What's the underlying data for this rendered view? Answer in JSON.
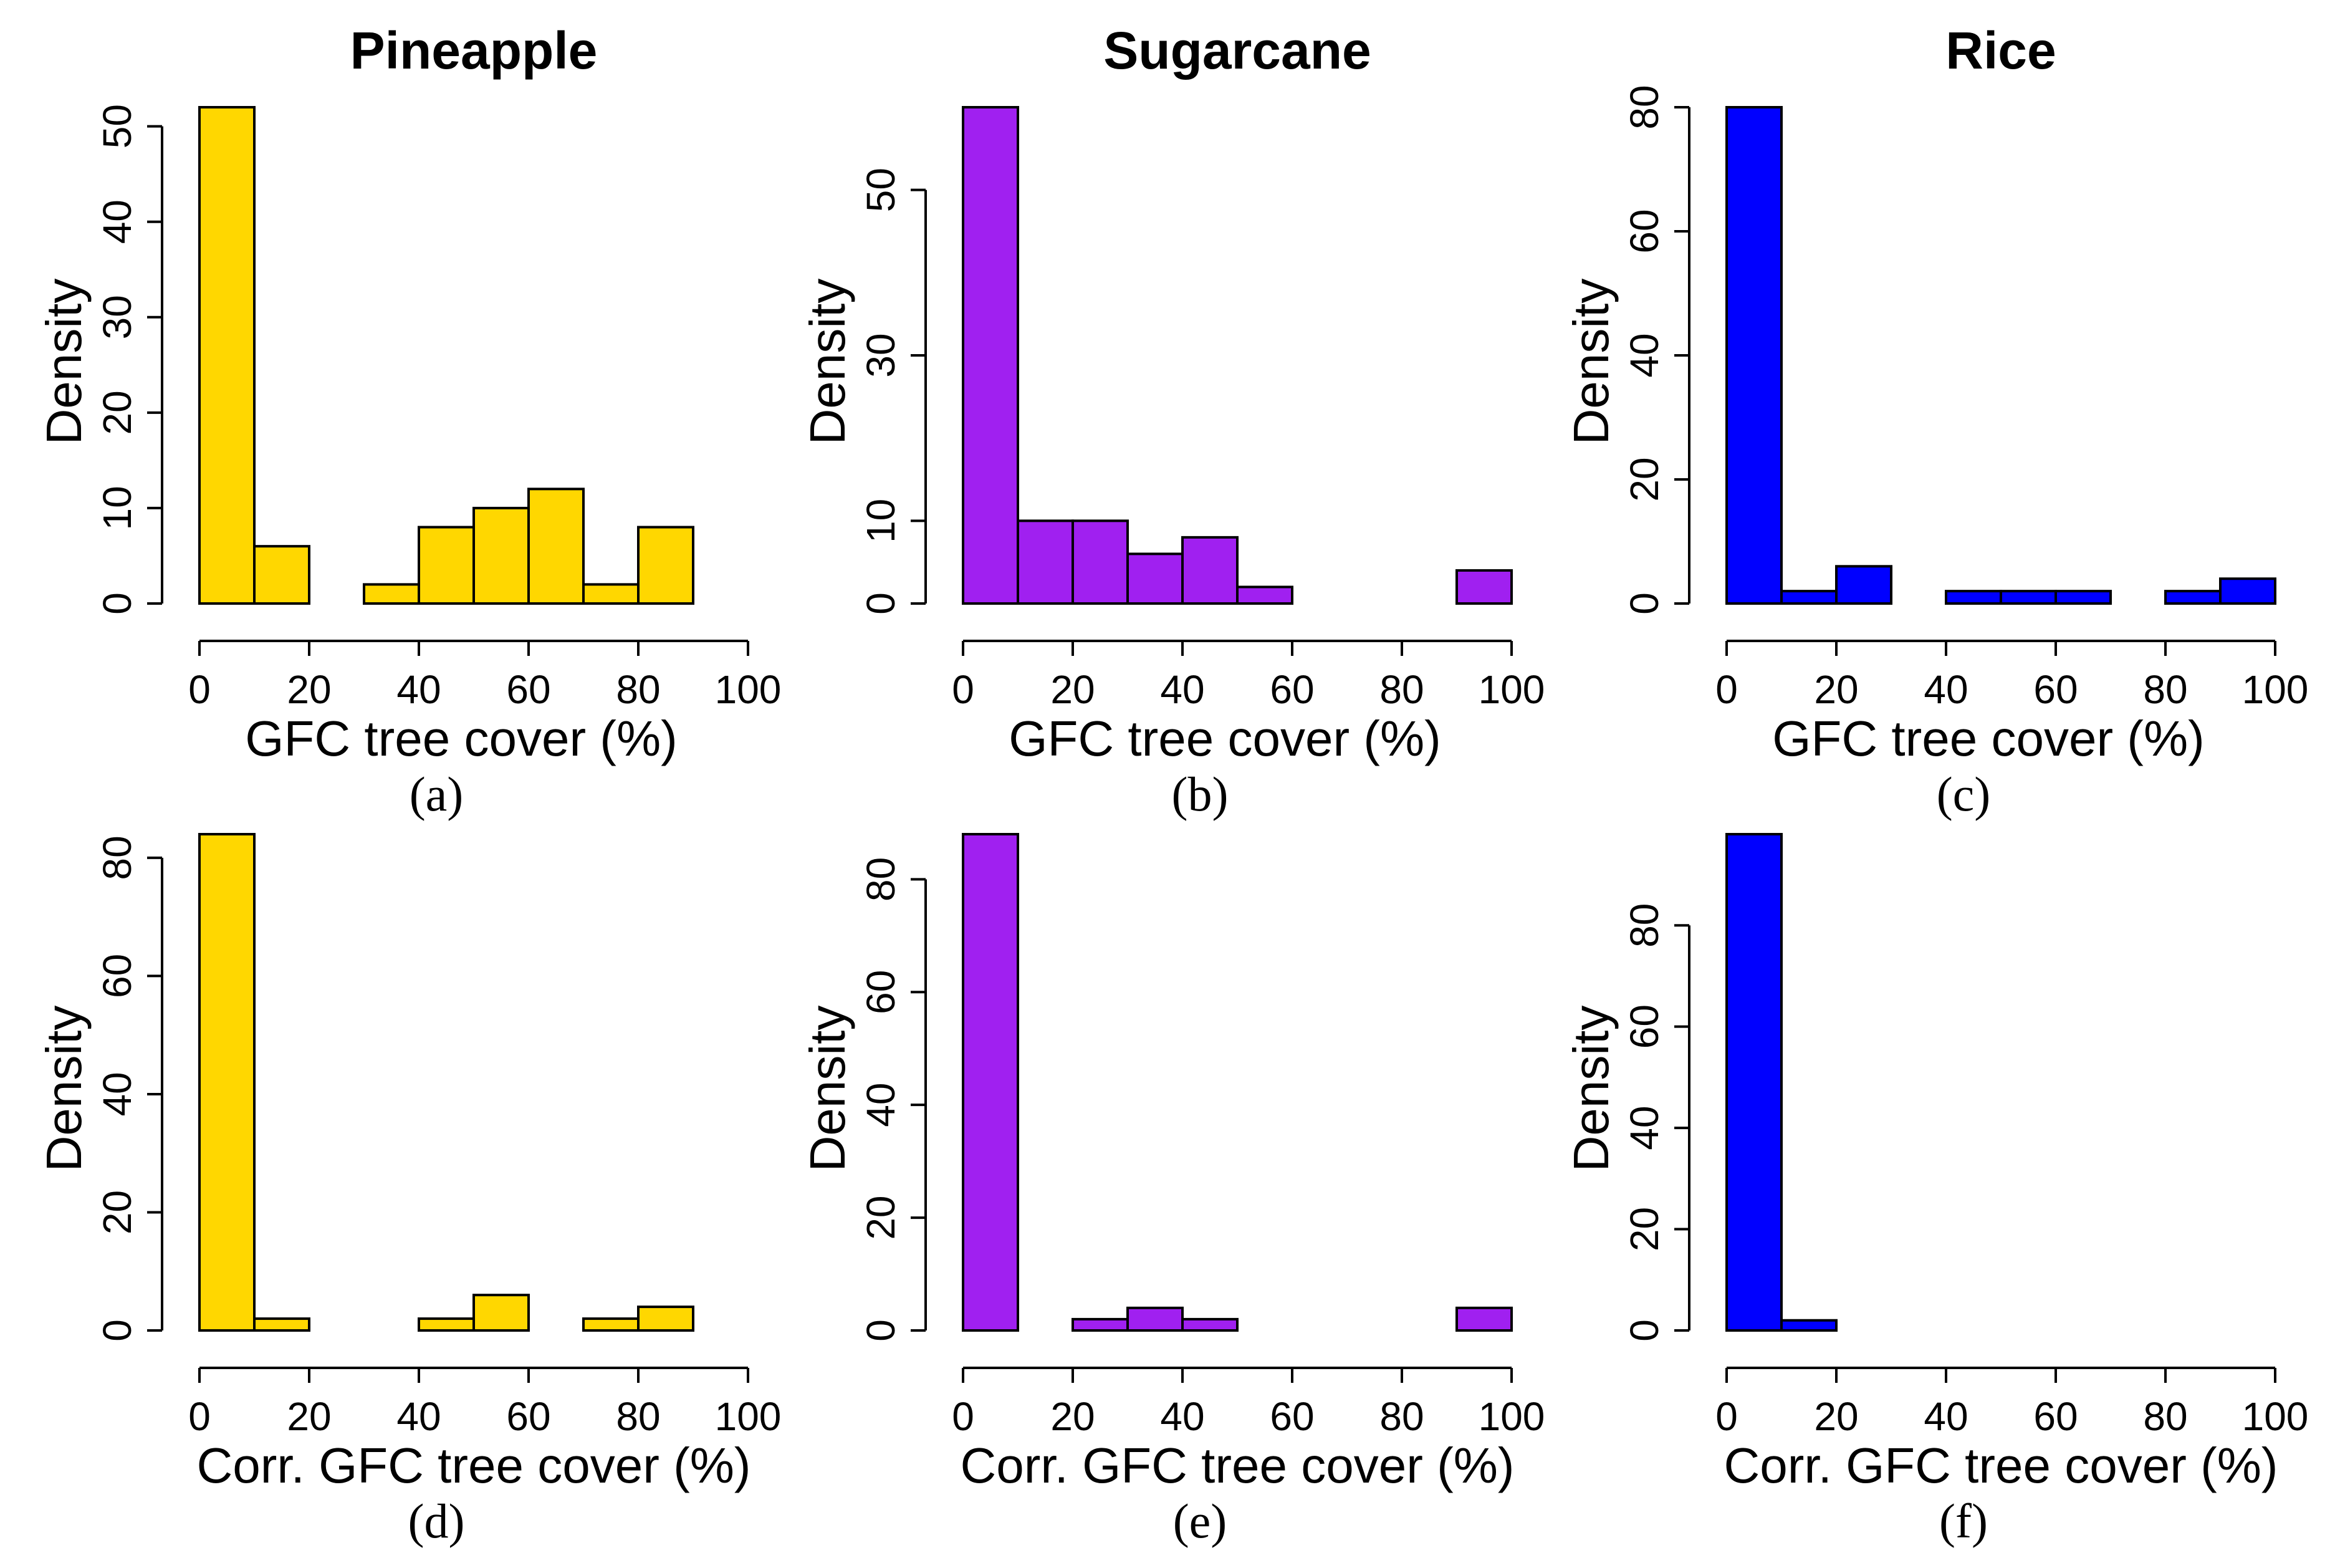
{
  "chart_data": [
    {
      "type": "bar",
      "title": "Pineapple",
      "caption": "(a)",
      "xlabel": "GFC tree cover (%)",
      "ylabel": "Density",
      "bin_edges": [
        0,
        10,
        20,
        30,
        40,
        50,
        60,
        70,
        80,
        90,
        100
      ],
      "values": [
        52,
        6,
        0,
        2,
        8,
        10,
        12,
        2,
        8,
        0
      ],
      "xlim": [
        0,
        100
      ],
      "ylim": [
        0,
        52
      ],
      "xticks": [
        0,
        20,
        40,
        60,
        80,
        100
      ],
      "yticks": [
        0,
        10,
        20,
        30,
        40,
        50
      ],
      "color": "#FFD700",
      "grid": false
    },
    {
      "type": "bar",
      "title": "Sugarcane",
      "caption": "(b)",
      "xlabel": "GFC tree cover (%)",
      "ylabel": "Density",
      "bin_edges": [
        0,
        10,
        20,
        30,
        40,
        50,
        60,
        70,
        80,
        90,
        100
      ],
      "values": [
        60,
        10,
        10,
        6,
        8,
        2,
        0,
        0,
        0,
        4
      ],
      "xlim": [
        0,
        100
      ],
      "ylim": [
        0,
        60
      ],
      "xticks": [
        0,
        20,
        40,
        60,
        80,
        100
      ],
      "yticks": [
        0,
        10,
        30,
        50
      ],
      "color": "#A020F0",
      "grid": false
    },
    {
      "type": "bar",
      "title": "Rice",
      "caption": "(c)",
      "xlabel": "GFC tree cover (%)",
      "ylabel": "Density",
      "bin_edges": [
        0,
        10,
        20,
        30,
        40,
        50,
        60,
        70,
        80,
        90,
        100
      ],
      "values": [
        80,
        2,
        6,
        0,
        2,
        2,
        2,
        0,
        2,
        4
      ],
      "xlim": [
        0,
        100
      ],
      "ylim": [
        0,
        80
      ],
      "xticks": [
        0,
        20,
        40,
        60,
        80,
        100
      ],
      "yticks": [
        0,
        20,
        40,
        60,
        80
      ],
      "color": "#0000FF",
      "grid": false
    },
    {
      "type": "bar",
      "title": "",
      "caption": "(d)",
      "xlabel": "Corr. GFC tree cover (%)",
      "ylabel": "Density",
      "bin_edges": [
        0,
        10,
        20,
        30,
        40,
        50,
        60,
        70,
        80,
        90,
        100
      ],
      "values": [
        84,
        2,
        0,
        0,
        2,
        6,
        0,
        2,
        4,
        0
      ],
      "xlim": [
        0,
        100
      ],
      "ylim": [
        0,
        84
      ],
      "xticks": [
        0,
        20,
        40,
        60,
        80,
        100
      ],
      "yticks": [
        0,
        20,
        40,
        60,
        80
      ],
      "color": "#FFD700",
      "grid": false
    },
    {
      "type": "bar",
      "title": "",
      "caption": "(e)",
      "xlabel": "Corr. GFC tree cover (%)",
      "ylabel": "Density",
      "bin_edges": [
        0,
        10,
        20,
        30,
        40,
        50,
        60,
        70,
        80,
        90,
        100
      ],
      "values": [
        88,
        0,
        2,
        4,
        2,
        0,
        0,
        0,
        0,
        4
      ],
      "xlim": [
        0,
        100
      ],
      "ylim": [
        0,
        88
      ],
      "xticks": [
        0,
        20,
        40,
        60,
        80,
        100
      ],
      "yticks": [
        0,
        20,
        40,
        60,
        80
      ],
      "color": "#A020F0",
      "grid": false
    },
    {
      "type": "bar",
      "title": "",
      "caption": "(f)",
      "xlabel": "Corr. GFC tree cover (%)",
      "ylabel": "Density",
      "bin_edges": [
        0,
        10,
        20,
        30,
        40,
        50,
        60,
        70,
        80,
        90,
        100
      ],
      "values": [
        98,
        2,
        0,
        0,
        0,
        0,
        0,
        0,
        0,
        0
      ],
      "xlim": [
        0,
        100
      ],
      "ylim": [
        0,
        98
      ],
      "xticks": [
        0,
        20,
        40,
        60,
        80,
        100
      ],
      "yticks": [
        0,
        20,
        40,
        60,
        80
      ],
      "color": "#0000FF",
      "grid": false
    }
  ]
}
